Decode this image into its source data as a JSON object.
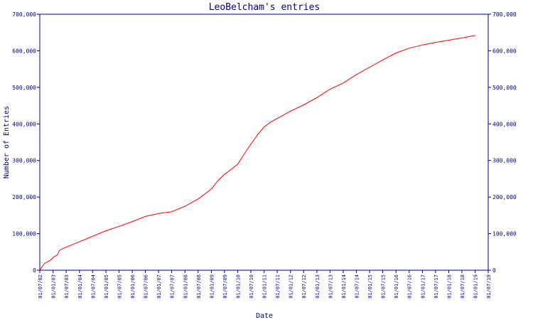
{
  "chart_data": {
    "type": "line",
    "title": "LeoBelcham's entries",
    "xlabel": "Date",
    "ylabel": "Number of Entries",
    "ylim": [
      0,
      700000
    ],
    "yticks": [
      0,
      100000,
      200000,
      300000,
      400000,
      500000,
      600000,
      700000
    ],
    "ytick_labels": [
      "0",
      "100,000",
      "200,000",
      "300,000",
      "400,000",
      "500,000",
      "600,000",
      "700,000"
    ],
    "xticks": [
      "01/07/02",
      "01/01/03",
      "01/07/03",
      "01/01/04",
      "01/07/04",
      "01/01/05",
      "01/07/05",
      "01/01/06",
      "01/07/06",
      "01/01/07",
      "01/07/07",
      "01/01/08",
      "01/07/08",
      "01/01/09",
      "01/07/09",
      "01/01/10",
      "01/07/10",
      "01/01/11",
      "01/07/11",
      "01/01/12",
      "01/07/12",
      "01/01/13",
      "01/07/13",
      "01/01/14",
      "01/07/14",
      "01/01/15",
      "01/07/15",
      "01/01/16",
      "01/07/16",
      "01/01/17",
      "01/07/17",
      "01/01/18",
      "01/07/18",
      "01/01/19",
      "01/07/19"
    ],
    "series": [
      {
        "color": "#ff0000",
        "x": [
          "2002-07-01",
          "2002-09-01",
          "2002-12-01",
          "2003-01-01",
          "2003-03-01",
          "2003-04-01",
          "2003-07-01",
          "2004-01-01",
          "2004-07-01",
          "2005-01-01",
          "2005-07-01",
          "2006-01-01",
          "2006-07-01",
          "2007-01-01",
          "2007-07-01",
          "2008-01-01",
          "2008-07-01",
          "2009-01-01",
          "2009-04-01",
          "2009-07-01",
          "2010-01-01",
          "2010-04-01",
          "2010-07-01",
          "2010-10-01",
          "2011-01-01",
          "2011-04-01",
          "2011-07-01",
          "2012-01-01",
          "2012-07-01",
          "2013-01-01",
          "2013-07-01",
          "2014-01-01",
          "2014-07-01",
          "2015-01-01",
          "2015-07-01",
          "2016-01-01",
          "2016-07-01",
          "2017-01-01",
          "2017-07-01",
          "2018-01-01",
          "2018-07-01",
          "2019-01-01"
        ],
        "y": [
          0,
          18000,
          28000,
          35000,
          42000,
          55000,
          63000,
          78000,
          93000,
          108000,
          120000,
          133000,
          147000,
          155000,
          160000,
          175000,
          195000,
          222000,
          245000,
          262000,
          290000,
          318000,
          345000,
          370000,
          392000,
          405000,
          415000,
          435000,
          452000,
          472000,
          495000,
          512000,
          535000,
          555000,
          575000,
          594000,
          607000,
          616000,
          623000,
          629000,
          635000,
          642000
        ]
      }
    ],
    "colors": {
      "axis": "#00007f",
      "line": "#ff0000",
      "background": "#ffffff"
    }
  }
}
